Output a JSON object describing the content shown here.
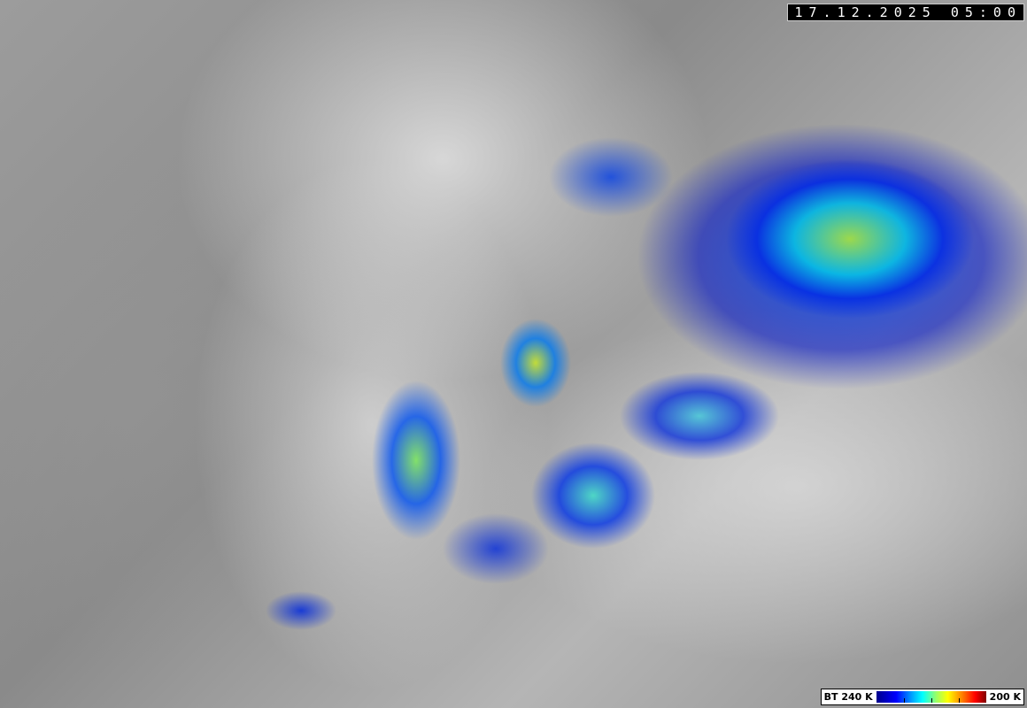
{
  "timestamp": "17.12.2025 05:00",
  "legend": {
    "left_label": "BT 240 K",
    "right_label": "200 K",
    "colormap": [
      "#00008c",
      "#0000ff",
      "#00ffff",
      "#ffff00",
      "#ff0000",
      "#800000"
    ]
  }
}
